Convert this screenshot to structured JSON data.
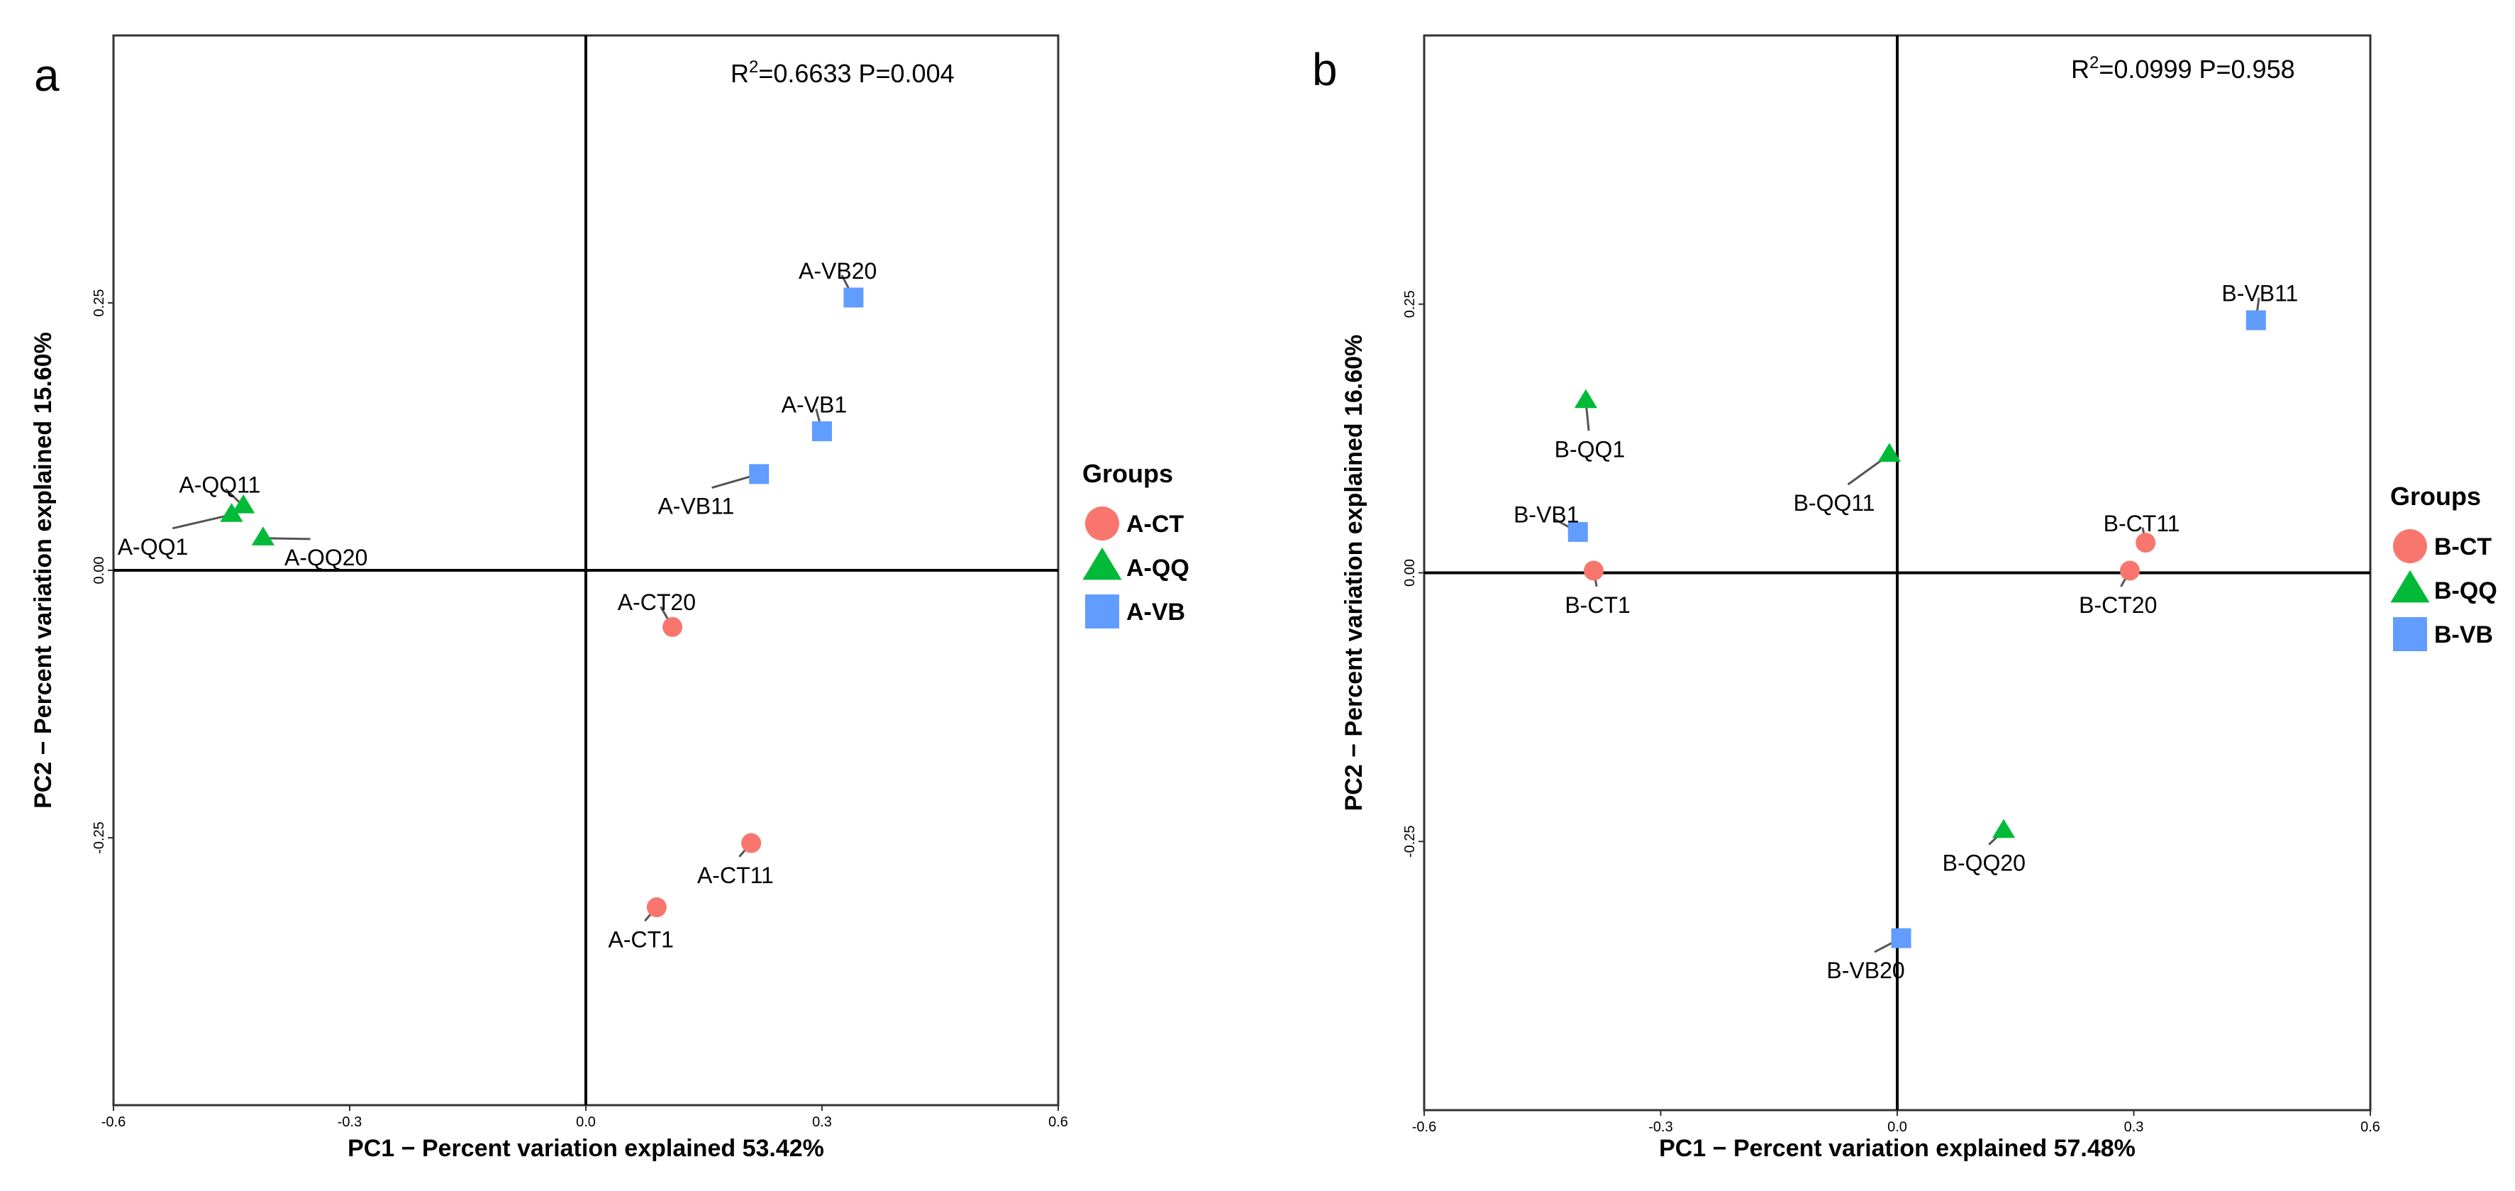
{
  "chart_data": [
    {
      "type": "scatter",
      "panel": "a",
      "stat_text_main": "=0.6633 P=0.004",
      "stat_r": "R",
      "stat_sup": "2",
      "xlabel": "PC1 − Percent variation explained 53.42%",
      "ylabel": "PC2 − Percent variation explained 15.60%",
      "xlim": [
        -0.6,
        0.6
      ],
      "ylim": [
        -0.5,
        0.5
      ],
      "xticks": [
        -0.6,
        -0.3,
        0.0,
        0.3,
        0.6
      ],
      "xtick_labels": [
        "-0.6",
        "-0.3",
        "0.0",
        "0.3",
        "0.6"
      ],
      "yticks": [
        -0.25,
        0.0,
        0.25
      ],
      "ytick_labels": [
        "-0.25",
        "0.00",
        "0.25"
      ],
      "legend_title": "Groups",
      "legend_position": "right",
      "groups": [
        {
          "name": "A-CT",
          "shape": "circle",
          "color": "#F8766D"
        },
        {
          "name": "A-QQ",
          "shape": "triangle",
          "color": "#00BA38"
        },
        {
          "name": "A-VB",
          "shape": "square",
          "color": "#619CFF"
        }
      ],
      "points": [
        {
          "label": "A-VB20",
          "group": "A-VB",
          "x": 0.34,
          "y": 0.255,
          "lx": 0.32,
          "ly": 0.28
        },
        {
          "label": "A-VB1",
          "group": "A-VB",
          "x": 0.3,
          "y": 0.13,
          "lx": 0.29,
          "ly": 0.155
        },
        {
          "label": "A-VB11",
          "group": "A-VB",
          "x": 0.22,
          "y": 0.09,
          "lx": 0.14,
          "ly": 0.06
        },
        {
          "label": "A-QQ11",
          "group": "A-QQ",
          "x": -0.435,
          "y": 0.06,
          "lx": -0.465,
          "ly": 0.08
        },
        {
          "label": "A-QQ1",
          "group": "A-QQ",
          "x": -0.45,
          "y": 0.052,
          "lx": -0.55,
          "ly": 0.022
        },
        {
          "label": "A-QQ20",
          "group": "A-QQ",
          "x": -0.41,
          "y": 0.03,
          "lx": -0.33,
          "ly": 0.012
        },
        {
          "label": "A-CT20",
          "group": "A-CT",
          "x": 0.11,
          "y": -0.053,
          "lx": 0.09,
          "ly": -0.03
        },
        {
          "label": "A-CT11",
          "group": "A-CT",
          "x": 0.21,
          "y": -0.255,
          "lx": 0.19,
          "ly": -0.285
        },
        {
          "label": "A-CT1",
          "group": "A-CT",
          "x": 0.09,
          "y": -0.315,
          "lx": 0.07,
          "ly": -0.345
        }
      ]
    },
    {
      "type": "scatter",
      "panel": "b",
      "stat_text_main": "=0.0999 P=0.958",
      "stat_r": "R",
      "stat_sup": "2",
      "xlabel": "PC1 − Percent variation explained 57.48%",
      "ylabel": "PC2 − Percent variation explained 16.60%",
      "xlim": [
        -0.6,
        0.6
      ],
      "ylim": [
        -0.5,
        0.5
      ],
      "xticks": [
        -0.6,
        -0.3,
        0.0,
        0.3,
        0.6
      ],
      "xtick_labels": [
        "-0.6",
        "-0.3",
        "0.0",
        "0.3",
        "0.6"
      ],
      "yticks": [
        -0.25,
        0.0,
        0.25
      ],
      "ytick_labels": [
        "-0.25",
        "0.00",
        "0.25"
      ],
      "legend_title": "Groups",
      "legend_position": "right",
      "groups": [
        {
          "name": "B-CT",
          "shape": "circle",
          "color": "#F8766D"
        },
        {
          "name": "B-QQ",
          "shape": "triangle",
          "color": "#00BA38"
        },
        {
          "name": "B-VB",
          "shape": "square",
          "color": "#619CFF"
        }
      ],
      "points": [
        {
          "label": "B-VB11",
          "group": "B-VB",
          "x": 0.455,
          "y": 0.235,
          "lx": 0.46,
          "ly": 0.26
        },
        {
          "label": "B-QQ1",
          "group": "B-QQ",
          "x": -0.395,
          "y": 0.16,
          "lx": -0.39,
          "ly": 0.115
        },
        {
          "label": "B-QQ11",
          "group": "B-QQ",
          "x": -0.01,
          "y": 0.11,
          "lx": -0.08,
          "ly": 0.065
        },
        {
          "label": "B-VB1",
          "group": "B-VB",
          "x": -0.405,
          "y": 0.038,
          "lx": -0.445,
          "ly": 0.054
        },
        {
          "label": "B-CT1",
          "group": "B-CT",
          "x": -0.385,
          "y": 0.002,
          "lx": -0.38,
          "ly": -0.03
        },
        {
          "label": "B-CT11",
          "group": "B-CT",
          "x": 0.315,
          "y": 0.028,
          "lx": 0.31,
          "ly": 0.046
        },
        {
          "label": "B-CT20",
          "group": "B-CT",
          "x": 0.295,
          "y": 0.002,
          "lx": 0.28,
          "ly": -0.03
        },
        {
          "label": "B-QQ20",
          "group": "B-QQ",
          "x": 0.135,
          "y": -0.24,
          "lx": 0.11,
          "ly": -0.27
        },
        {
          "label": "B-VB20",
          "group": "B-VB",
          "x": 0.005,
          "y": -0.34,
          "lx": -0.04,
          "ly": -0.37
        }
      ]
    }
  ]
}
